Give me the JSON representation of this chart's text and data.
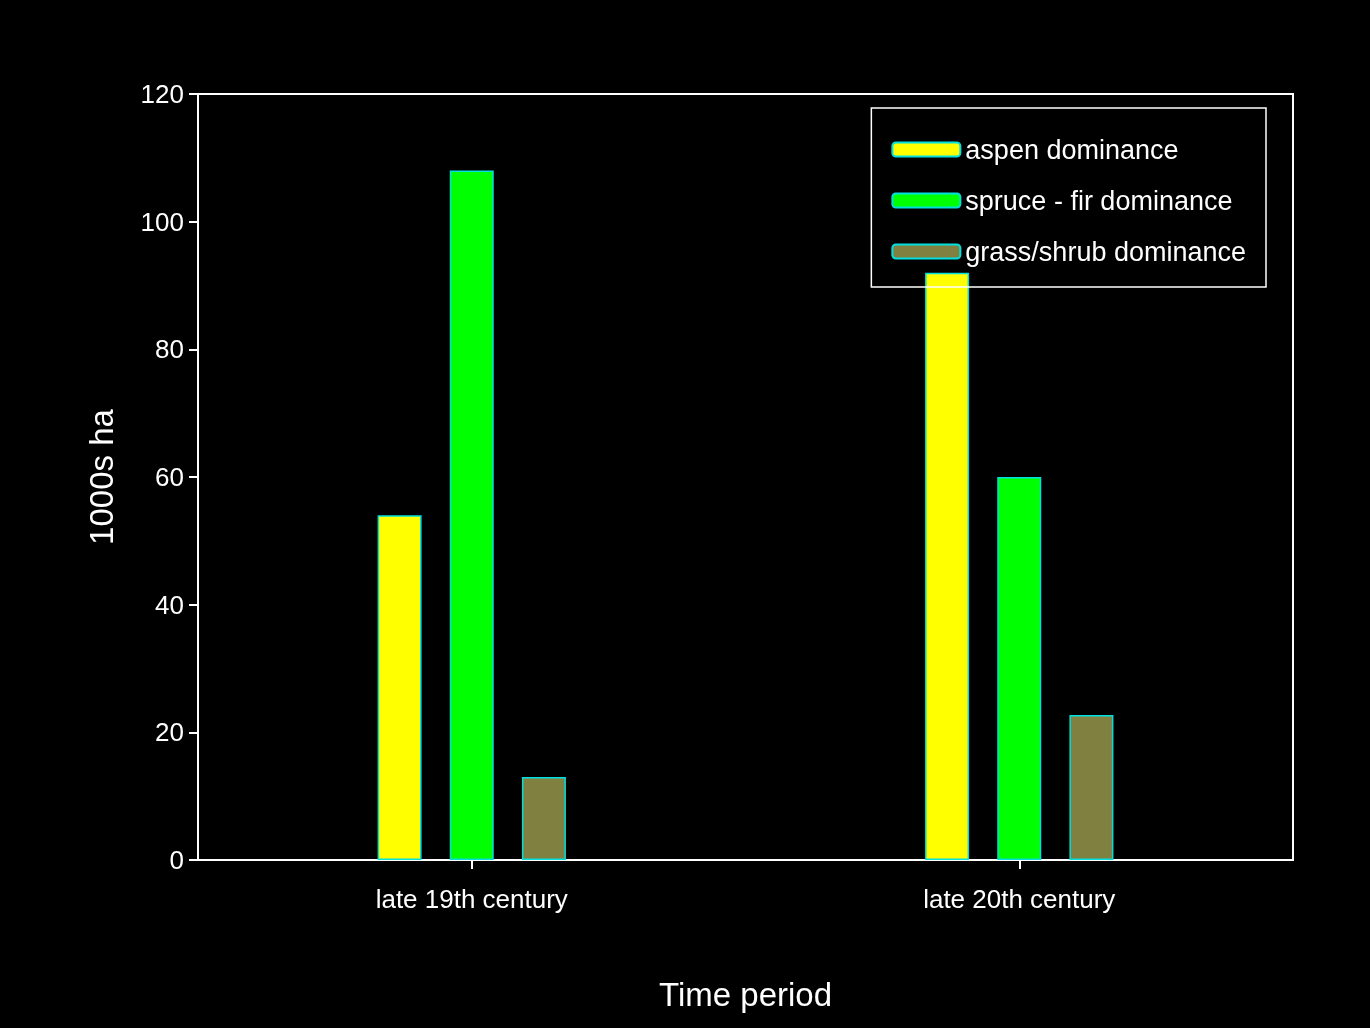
{
  "chart_data": {
    "type": "bar",
    "xlabel": "Time period",
    "ylabel": "1000s ha",
    "categories": [
      "late 19th century",
      "late 20th century"
    ],
    "series": [
      {
        "name": "aspen dominance",
        "color": "#ffff00",
        "values": [
          54,
          92
        ]
      },
      {
        "name": "spruce - fir dominance",
        "color": "#00ff00",
        "values": [
          108,
          60
        ]
      },
      {
        "name": "grass/shrub dominance",
        "color": "#808040",
        "values": [
          13,
          22.7
        ]
      }
    ],
    "ylim": [
      0,
      120
    ],
    "yticks": [
      0,
      20,
      40,
      60,
      80,
      100,
      120
    ],
    "grid": false,
    "legend": "top right"
  }
}
